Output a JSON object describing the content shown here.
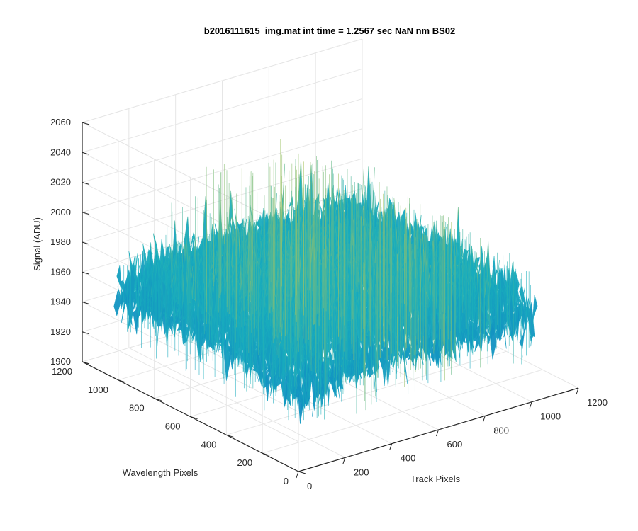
{
  "chart_data": {
    "type": "surface",
    "title": "b2016111615_img.mat int time = 1.2567 sec  NaN nm BS02",
    "xlabel": "Track Pixels",
    "ylabel": "Wavelength Pixels",
    "zlabel": "Signal (ADU)",
    "xlim": [
      0,
      1200
    ],
    "ylim": [
      0,
      1200
    ],
    "zlim": [
      1900,
      2060
    ],
    "x_ticks": [
      0,
      200,
      400,
      600,
      800,
      1000,
      1200
    ],
    "y_ticks": [
      0,
      200,
      400,
      600,
      800,
      1000,
      1200
    ],
    "z_ticks": [
      1900,
      1920,
      1940,
      1960,
      1980,
      2000,
      2020,
      2040,
      2060
    ],
    "grid": true,
    "colormap": "parula",
    "data_extent": {
      "x": [
        0,
        1024
      ],
      "y": [
        0,
        1024
      ]
    },
    "signal_baseline": 1960,
    "signal_range": [
      1910,
      2055
    ],
    "colors": {
      "low": "#0a72c8",
      "mid": "#1ab0bd",
      "high": "#d2c843",
      "axis": "#262626",
      "grid": "#e6e6e6"
    }
  }
}
